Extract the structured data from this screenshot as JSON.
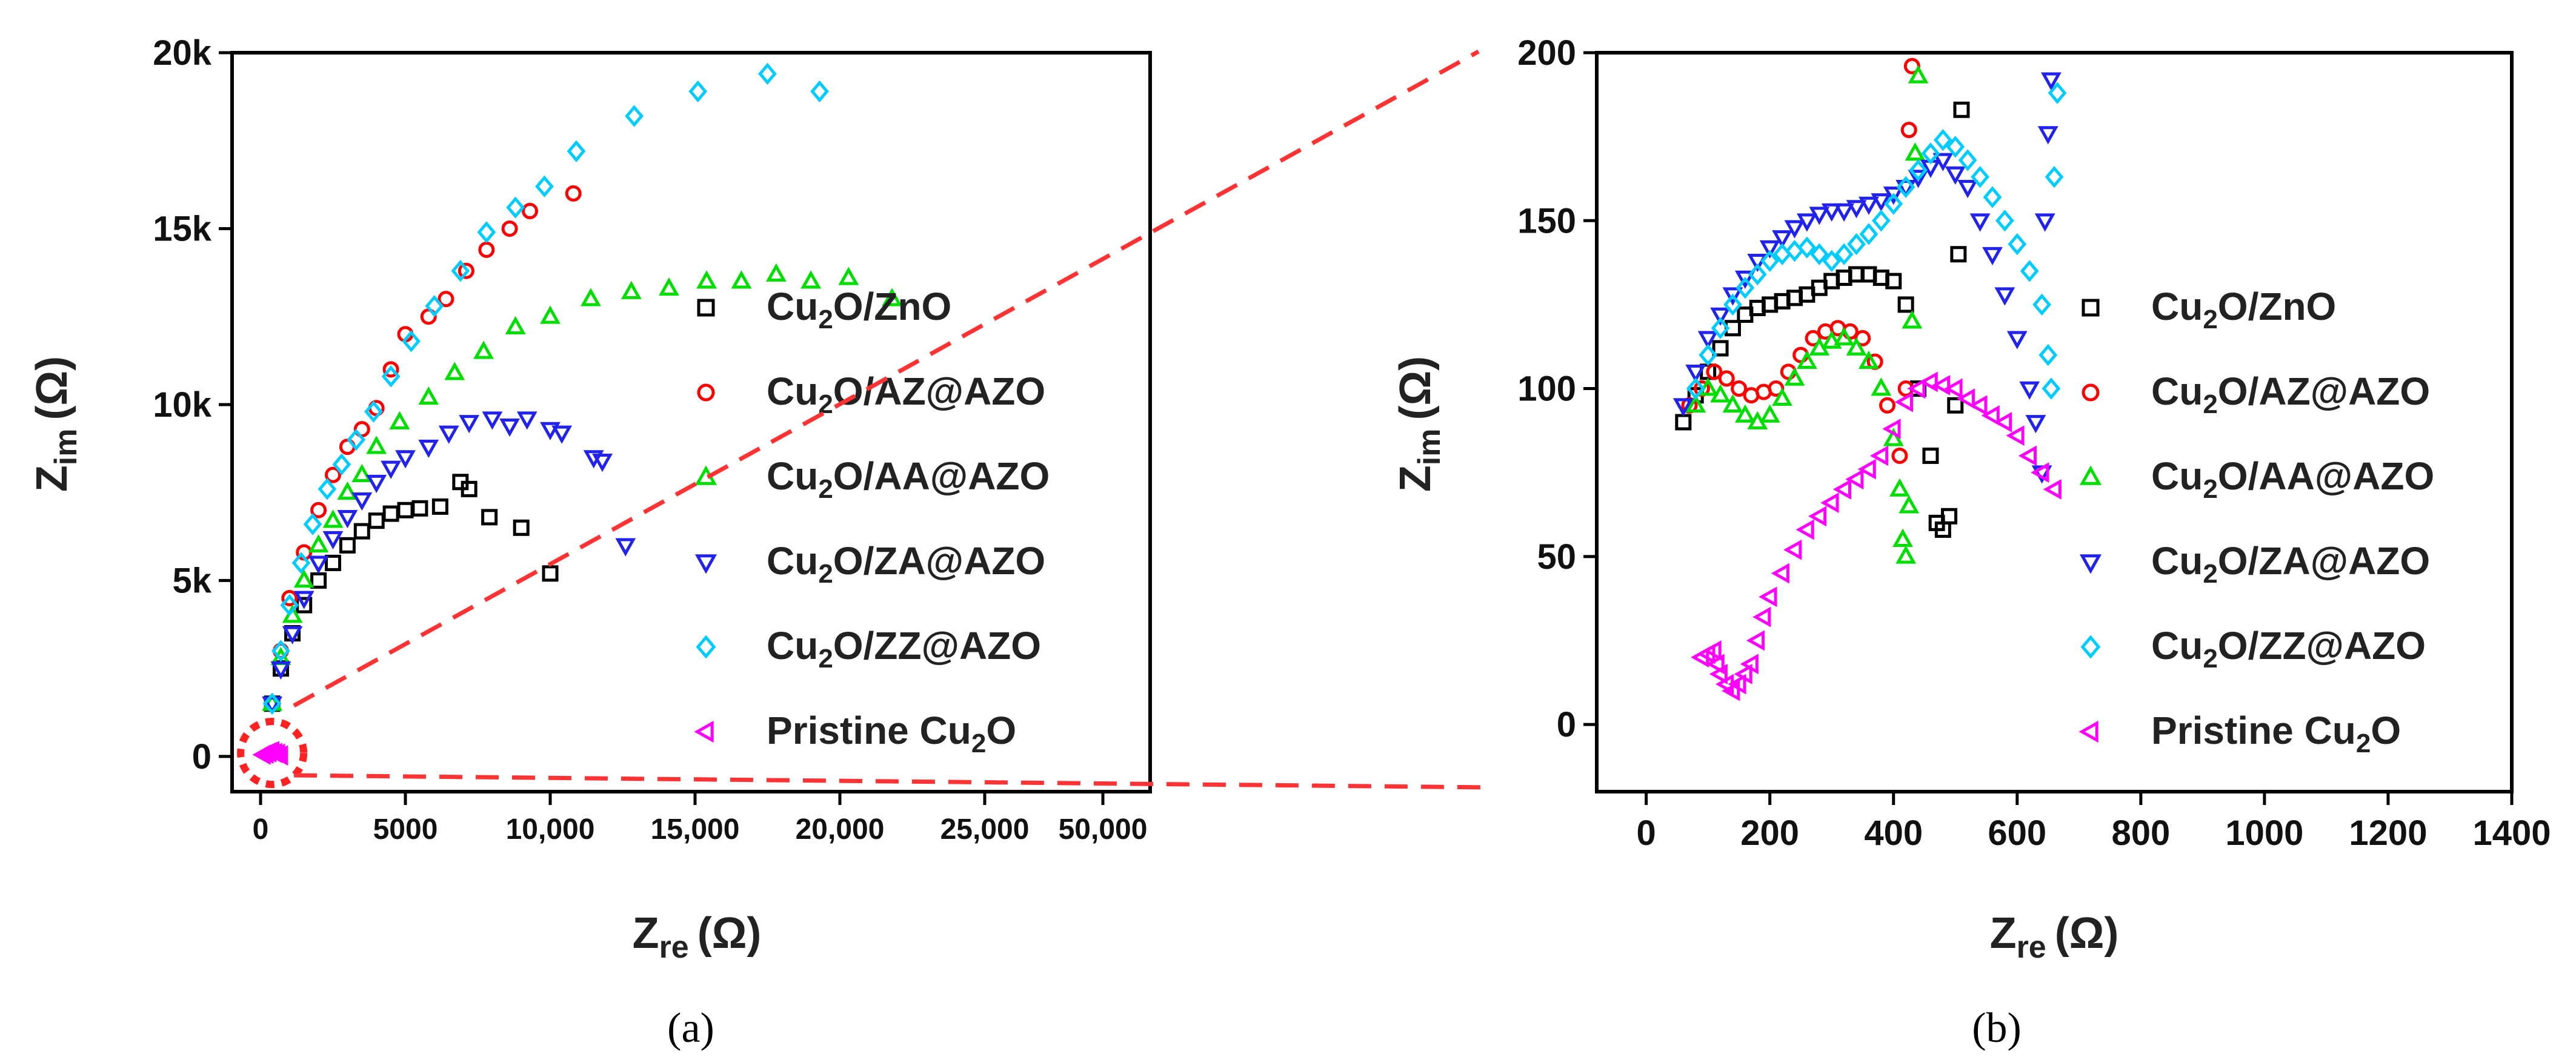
{
  "chart_data": [
    {
      "id": "a",
      "type": "scatter",
      "caption": "(a)",
      "xlabel": {
        "main": "Z",
        "sub": "re",
        "unit": "(Ω)"
      },
      "ylabel": {
        "main": "Z",
        "sub": "im",
        "unit": "(Ω)"
      },
      "xlim": [
        -1000,
        50000
      ],
      "ylim": [
        -1000,
        20000
      ],
      "xticks": [
        {
          "v": 0,
          "label": "0"
        },
        {
          "v": 5000,
          "label": "5000"
        },
        {
          "v": 10000,
          "label": "10,000"
        },
        {
          "v": 15000,
          "label": "15,000"
        },
        {
          "v": 20000,
          "label": "20,000"
        },
        {
          "v": 25000,
          "label": "25,000"
        },
        {
          "v": 50000,
          "label": "50,000"
        }
      ],
      "yticks": [
        {
          "v": 0,
          "label": "0"
        },
        {
          "v": 5000,
          "label": "5k"
        },
        {
          "v": 10000,
          "label": "10k"
        },
        {
          "v": 15000,
          "label": "15k"
        },
        {
          "v": 20000,
          "label": "20k"
        }
      ],
      "series": [
        {
          "name": "Cu2O/ZnO",
          "color": "#000000",
          "marker": "square",
          "x": [
            400,
            700,
            1100,
            1500,
            2000,
            2500,
            3000,
            3500,
            4000,
            4500,
            5000,
            5500,
            6200,
            6900,
            7200,
            7900,
            9000,
            10000
          ],
          "y": [
            1500,
            2500,
            3500,
            4300,
            5000,
            5500,
            6000,
            6400,
            6700,
            6900,
            7000,
            7050,
            7100,
            7800,
            7600,
            6800,
            6500,
            5200
          ]
        },
        {
          "name": "Cu2O/AZ@AZO",
          "color": "#ff0000",
          "marker": "circle",
          "x": [
            400,
            700,
            1000,
            1500,
            2000,
            2500,
            3000,
            3500,
            4000,
            4500,
            5000,
            5800,
            6400,
            7100,
            7800,
            8600,
            9300,
            10800
          ],
          "y": [
            1500,
            3000,
            4500,
            5800,
            7000,
            8000,
            8800,
            9300,
            9900,
            11000,
            12000,
            12500,
            13000,
            13800,
            14400,
            15000,
            15500,
            16000
          ]
        },
        {
          "name": "Cu2O/AA@AZO",
          "color": "#00dd00",
          "marker": "triangle-up",
          "x": [
            400,
            700,
            1100,
            1500,
            2000,
            2500,
            3000,
            3500,
            4000,
            4800,
            5800,
            6700,
            7700,
            8800,
            10000,
            11400,
            12800,
            14100,
            15400,
            16600,
            17800,
            19000,
            20300,
            21800
          ],
          "y": [
            1500,
            2800,
            4000,
            5000,
            6000,
            6700,
            7500,
            8000,
            8800,
            9500,
            10200,
            10900,
            11500,
            12200,
            12500,
            13000,
            13200,
            13300,
            13500,
            13500,
            13700,
            13500,
            13600,
            13000
          ]
        },
        {
          "name": "Cu2O/ZA@AZO",
          "color": "#2222ee",
          "marker": "triangle-down",
          "x": [
            400,
            700,
            1100,
            1500,
            2000,
            2500,
            3000,
            3500,
            4000,
            4500,
            5000,
            5800,
            6500,
            7200,
            8000,
            8600,
            9200,
            10000,
            10400,
            11500,
            11800,
            12600
          ],
          "y": [
            1500,
            2500,
            3500,
            4500,
            5500,
            6200,
            6800,
            7300,
            7800,
            8200,
            8500,
            8800,
            9200,
            9500,
            9600,
            9400,
            9600,
            9300,
            9200,
            8500,
            8400,
            6000
          ]
        },
        {
          "name": "Cu2O/ZZ@AZO",
          "color": "#00ccff",
          "marker": "diamond",
          "x": [
            400,
            700,
            1000,
            1400,
            1800,
            2300,
            2800,
            3300,
            3900,
            4500,
            5200,
            6000,
            6900,
            7800,
            8800,
            9800,
            10900,
            12900,
            15100,
            17500,
            19300
          ],
          "y": [
            1500,
            3000,
            4300,
            5500,
            6600,
            7600,
            8300,
            9000,
            9800,
            10800,
            11800,
            12800,
            13800,
            14900,
            15600,
            16200,
            17200,
            18200,
            18900,
            19400,
            18900
          ]
        },
        {
          "name": "Pristine Cu2O",
          "color": "#ff00ff",
          "marker": "triangle-left",
          "x": [
            100,
            200,
            300,
            400,
            500,
            600,
            700
          ],
          "y": [
            50,
            80,
            120,
            150,
            100,
            80,
            30
          ]
        }
      ],
      "highlight_circle": {
        "x": 400,
        "y": 100
      }
    },
    {
      "id": "b",
      "type": "scatter",
      "caption": "(b)",
      "xlabel": {
        "main": "Z",
        "sub": "re",
        "unit": "(Ω)"
      },
      "ylabel": {
        "main": "Z",
        "sub": "im",
        "unit": "(Ω)"
      },
      "xlim": [
        -80,
        1400
      ],
      "ylim": [
        -20,
        200
      ],
      "xticks": [
        {
          "v": 0,
          "label": "0"
        },
        {
          "v": 200,
          "label": "200"
        },
        {
          "v": 400,
          "label": "400"
        },
        {
          "v": 600,
          "label": "600"
        },
        {
          "v": 800,
          "label": "800"
        },
        {
          "v": 1000,
          "label": "1000"
        },
        {
          "v": 1200,
          "label": "1200"
        },
        {
          "v": 1400,
          "label": "1400"
        }
      ],
      "yticks": [
        {
          "v": 0,
          "label": "0"
        },
        {
          "v": 50,
          "label": "50"
        },
        {
          "v": 100,
          "label": "100"
        },
        {
          "v": 150,
          "label": "150"
        },
        {
          "v": 200,
          "label": "200"
        }
      ],
      "series": [
        {
          "name": "Cu2O/ZnO",
          "color": "#000000",
          "marker": "square",
          "x": [
            60,
            80,
            100,
            120,
            140,
            160,
            180,
            200,
            220,
            240,
            260,
            280,
            300,
            320,
            340,
            360,
            380,
            400,
            420,
            440,
            460,
            470,
            480,
            490,
            500,
            505,
            510
          ],
          "y": [
            90,
            98,
            105,
            112,
            118,
            122,
            124,
            125,
            126,
            127,
            128,
            130,
            132,
            133,
            134,
            134,
            133,
            132,
            125,
            100,
            80,
            60,
            58,
            62,
            95,
            140,
            183
          ]
        },
        {
          "name": "Cu2O/AZ@AZO",
          "color": "#ff0000",
          "marker": "circle",
          "x": [
            70,
            90,
            110,
            130,
            150,
            170,
            190,
            210,
            230,
            250,
            270,
            290,
            310,
            330,
            350,
            370,
            390,
            410,
            420,
            425,
            430
          ],
          "y": [
            95,
            100,
            105,
            103,
            100,
            98,
            99,
            100,
            105,
            110,
            115,
            117,
            118,
            117,
            115,
            108,
            95,
            80,
            100,
            177,
            196
          ]
        },
        {
          "name": "Cu2O/AA@AZO",
          "color": "#00dd00",
          "marker": "triangle-up",
          "x": [
            80,
            100,
            120,
            140,
            160,
            180,
            200,
            220,
            240,
            260,
            280,
            300,
            320,
            340,
            360,
            380,
            400,
            410,
            415,
            420,
            425,
            430,
            435,
            440
          ],
          "y": [
            95,
            100,
            98,
            95,
            92,
            90,
            92,
            97,
            103,
            108,
            112,
            114,
            115,
            112,
            108,
            100,
            85,
            70,
            55,
            50,
            65,
            120,
            170,
            193
          ]
        },
        {
          "name": "Cu2O/ZA@AZO",
          "color": "#2222ee",
          "marker": "triangle-down",
          "x": [
            60,
            80,
            100,
            120,
            140,
            160,
            180,
            200,
            220,
            240,
            260,
            280,
            300,
            320,
            340,
            360,
            380,
            400,
            420,
            440,
            460,
            480,
            500,
            520,
            540,
            560,
            580,
            600,
            620,
            630,
            640,
            645,
            650,
            655
          ],
          "y": [
            95,
            105,
            115,
            122,
            128,
            133,
            138,
            142,
            145,
            148,
            150,
            152,
            153,
            153,
            154,
            155,
            156,
            158,
            160,
            163,
            166,
            168,
            164,
            160,
            150,
            140,
            128,
            115,
            100,
            90,
            75,
            150,
            176,
            192
          ]
        },
        {
          "name": "Cu2O/ZZ@AZO",
          "color": "#00ccff",
          "marker": "diamond",
          "x": [
            80,
            100,
            120,
            140,
            160,
            180,
            200,
            220,
            240,
            260,
            280,
            300,
            320,
            340,
            360,
            380,
            400,
            420,
            440,
            460,
            480,
            500,
            520,
            540,
            560,
            580,
            600,
            620,
            640,
            650,
            655,
            660,
            665
          ],
          "y": [
            100,
            110,
            118,
            125,
            130,
            134,
            138,
            140,
            141,
            142,
            140,
            138,
            140,
            143,
            146,
            150,
            155,
            160,
            165,
            170,
            174,
            172,
            168,
            163,
            157,
            150,
            143,
            135,
            125,
            110,
            100,
            163,
            188
          ]
        },
        {
          "name": "Pristine Cu2O",
          "color": "#ff00ff",
          "marker": "triangle-left",
          "x": [
            90,
            100,
            110,
            115,
            120,
            130,
            140,
            150,
            160,
            170,
            180,
            190,
            200,
            220,
            240,
            260,
            280,
            300,
            320,
            340,
            360,
            380,
            400,
            420,
            440,
            460,
            480,
            500,
            520,
            540,
            560,
            580,
            600,
            620,
            640,
            660
          ],
          "y": [
            20,
            21,
            22,
            18,
            15,
            12,
            10,
            12,
            15,
            18,
            25,
            32,
            38,
            45,
            52,
            58,
            62,
            66,
            70,
            73,
            76,
            80,
            88,
            96,
            100,
            102,
            101,
            100,
            97,
            95,
            92,
            90,
            86,
            80,
            75,
            70
          ]
        }
      ]
    }
  ],
  "legend_entries": [
    {
      "pre": "Cu",
      "sub": "2",
      "post": "O/ZnO"
    },
    {
      "pre": "Cu",
      "sub": "2",
      "post": "O/AZ@AZO"
    },
    {
      "pre": "Cu",
      "sub": "2",
      "post": "O/AA@AZO"
    },
    {
      "pre": "Cu",
      "sub": "2",
      "post": "O/ZA@AZO"
    },
    {
      "pre": "Cu",
      "sub": "2",
      "post": "O/ZZ@AZO"
    },
    {
      "pre": "Pristine Cu",
      "sub": "2",
      "post": "O"
    }
  ]
}
